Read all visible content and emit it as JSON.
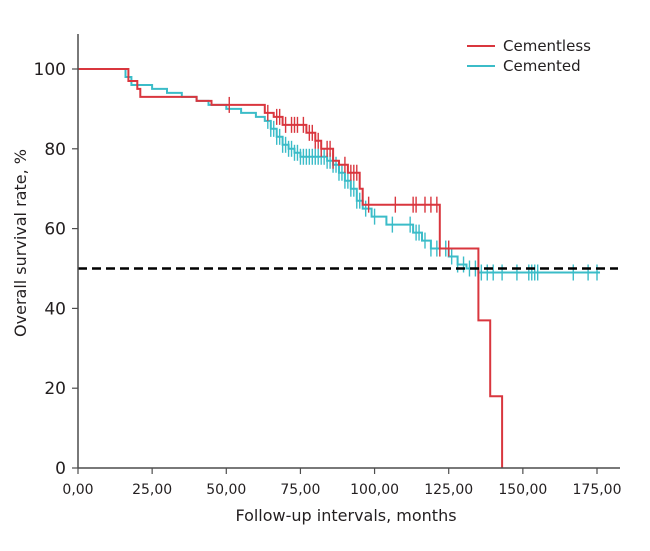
{
  "chart_data": {
    "type": "line",
    "subtype": "kaplan-meier step",
    "title": "",
    "xlabel": "Follow-up intervals, months",
    "ylabel": "Overall survival rate, %",
    "xlim": [
      0,
      185
    ],
    "ylim": [
      0,
      108
    ],
    "x_ticks": [
      0,
      25,
      50,
      75,
      100,
      125,
      150,
      175
    ],
    "x_tick_labels": [
      "0,00",
      "25,00",
      "50,00",
      "75,00",
      "100,00",
      "125,00",
      "150,00",
      "175,00"
    ],
    "y_ticks": [
      0,
      20,
      40,
      60,
      80,
      100
    ],
    "y_tick_labels": [
      "0",
      "20",
      "40",
      "60",
      "80",
      "100"
    ],
    "legend": {
      "position": "top-right",
      "entries": [
        "Cementless",
        "Cemented"
      ]
    },
    "reference_line": {
      "y": 50,
      "style": "dashed",
      "color": "#000000"
    },
    "series": [
      {
        "name": "Cementless",
        "color": "#d9363e",
        "steps": [
          [
            0,
            100
          ],
          [
            17,
            100
          ],
          [
            17,
            97
          ],
          [
            20,
            97
          ],
          [
            20,
            95
          ],
          [
            21,
            95
          ],
          [
            21,
            93
          ],
          [
            40,
            93
          ],
          [
            40,
            92
          ],
          [
            45,
            92
          ],
          [
            45,
            91
          ],
          [
            63,
            91
          ],
          [
            63,
            89
          ],
          [
            66,
            89
          ],
          [
            66,
            88
          ],
          [
            69,
            88
          ],
          [
            69,
            86
          ],
          [
            77,
            86
          ],
          [
            77,
            84
          ],
          [
            80,
            84
          ],
          [
            80,
            82
          ],
          [
            82,
            82
          ],
          [
            82,
            80
          ],
          [
            86,
            80
          ],
          [
            86,
            77
          ],
          [
            88,
            77
          ],
          [
            88,
            76
          ],
          [
            91,
            76
          ],
          [
            91,
            74
          ],
          [
            95,
            74
          ],
          [
            95,
            70
          ],
          [
            96,
            70
          ],
          [
            96,
            66
          ],
          [
            122,
            66
          ],
          [
            122,
            55
          ],
          [
            135,
            55
          ],
          [
            135,
            37
          ],
          [
            139,
            37
          ],
          [
            139,
            18
          ],
          [
            143,
            18
          ],
          [
            143,
            0
          ]
        ],
        "censored": [
          51,
          64,
          67,
          68,
          70,
          72,
          73,
          74,
          76,
          78,
          79,
          80,
          81,
          82,
          84,
          85,
          86,
          90,
          92,
          93,
          94,
          98,
          107,
          113,
          114,
          117,
          119,
          121,
          122,
          125
        ]
      },
      {
        "name": "Cemented",
        "color": "#3bbcc8",
        "steps": [
          [
            0,
            100
          ],
          [
            16,
            100
          ],
          [
            16,
            98
          ],
          [
            18,
            98
          ],
          [
            18,
            96
          ],
          [
            25,
            96
          ],
          [
            25,
            95
          ],
          [
            30,
            95
          ],
          [
            30,
            94
          ],
          [
            35,
            94
          ],
          [
            35,
            93
          ],
          [
            40,
            93
          ],
          [
            40,
            92
          ],
          [
            44,
            92
          ],
          [
            44,
            91
          ],
          [
            50,
            91
          ],
          [
            50,
            90
          ],
          [
            55,
            90
          ],
          [
            55,
            89
          ],
          [
            60,
            89
          ],
          [
            60,
            88
          ],
          [
            63,
            88
          ],
          [
            63,
            87
          ],
          [
            65,
            87
          ],
          [
            65,
            85
          ],
          [
            67,
            85
          ],
          [
            67,
            83
          ],
          [
            69,
            83
          ],
          [
            69,
            81
          ],
          [
            71,
            81
          ],
          [
            71,
            80
          ],
          [
            73,
            80
          ],
          [
            73,
            79
          ],
          [
            75,
            79
          ],
          [
            75,
            78
          ],
          [
            84,
            78
          ],
          [
            84,
            77
          ],
          [
            86,
            77
          ],
          [
            86,
            76
          ],
          [
            88,
            76
          ],
          [
            88,
            74
          ],
          [
            90,
            74
          ],
          [
            90,
            72
          ],
          [
            92,
            72
          ],
          [
            92,
            70
          ],
          [
            94,
            70
          ],
          [
            94,
            67
          ],
          [
            96,
            67
          ],
          [
            96,
            65
          ],
          [
            99,
            65
          ],
          [
            99,
            63
          ],
          [
            104,
            63
          ],
          [
            104,
            61
          ],
          [
            113,
            61
          ],
          [
            113,
            59
          ],
          [
            116,
            59
          ],
          [
            116,
            57
          ],
          [
            119,
            57
          ],
          [
            119,
            55
          ],
          [
            125,
            55
          ],
          [
            125,
            53
          ],
          [
            128,
            53
          ],
          [
            128,
            51
          ],
          [
            131,
            51
          ],
          [
            131,
            50
          ],
          [
            135,
            50
          ],
          [
            135,
            49
          ],
          [
            176,
            49
          ]
        ],
        "censored": [
          64,
          65,
          66,
          67,
          68,
          69,
          70,
          71,
          72,
          73,
          74,
          75,
          76,
          77,
          78,
          79,
          80,
          81,
          82,
          83,
          84,
          85,
          86,
          87,
          88,
          89,
          90,
          91,
          92,
          93,
          94,
          95,
          97,
          100,
          106,
          112,
          114,
          115,
          117,
          119,
          121,
          124,
          126,
          128,
          130,
          132,
          134,
          136,
          138,
          140,
          143,
          148,
          152,
          153,
          154,
          155,
          167,
          172,
          175
        ]
      }
    ]
  }
}
